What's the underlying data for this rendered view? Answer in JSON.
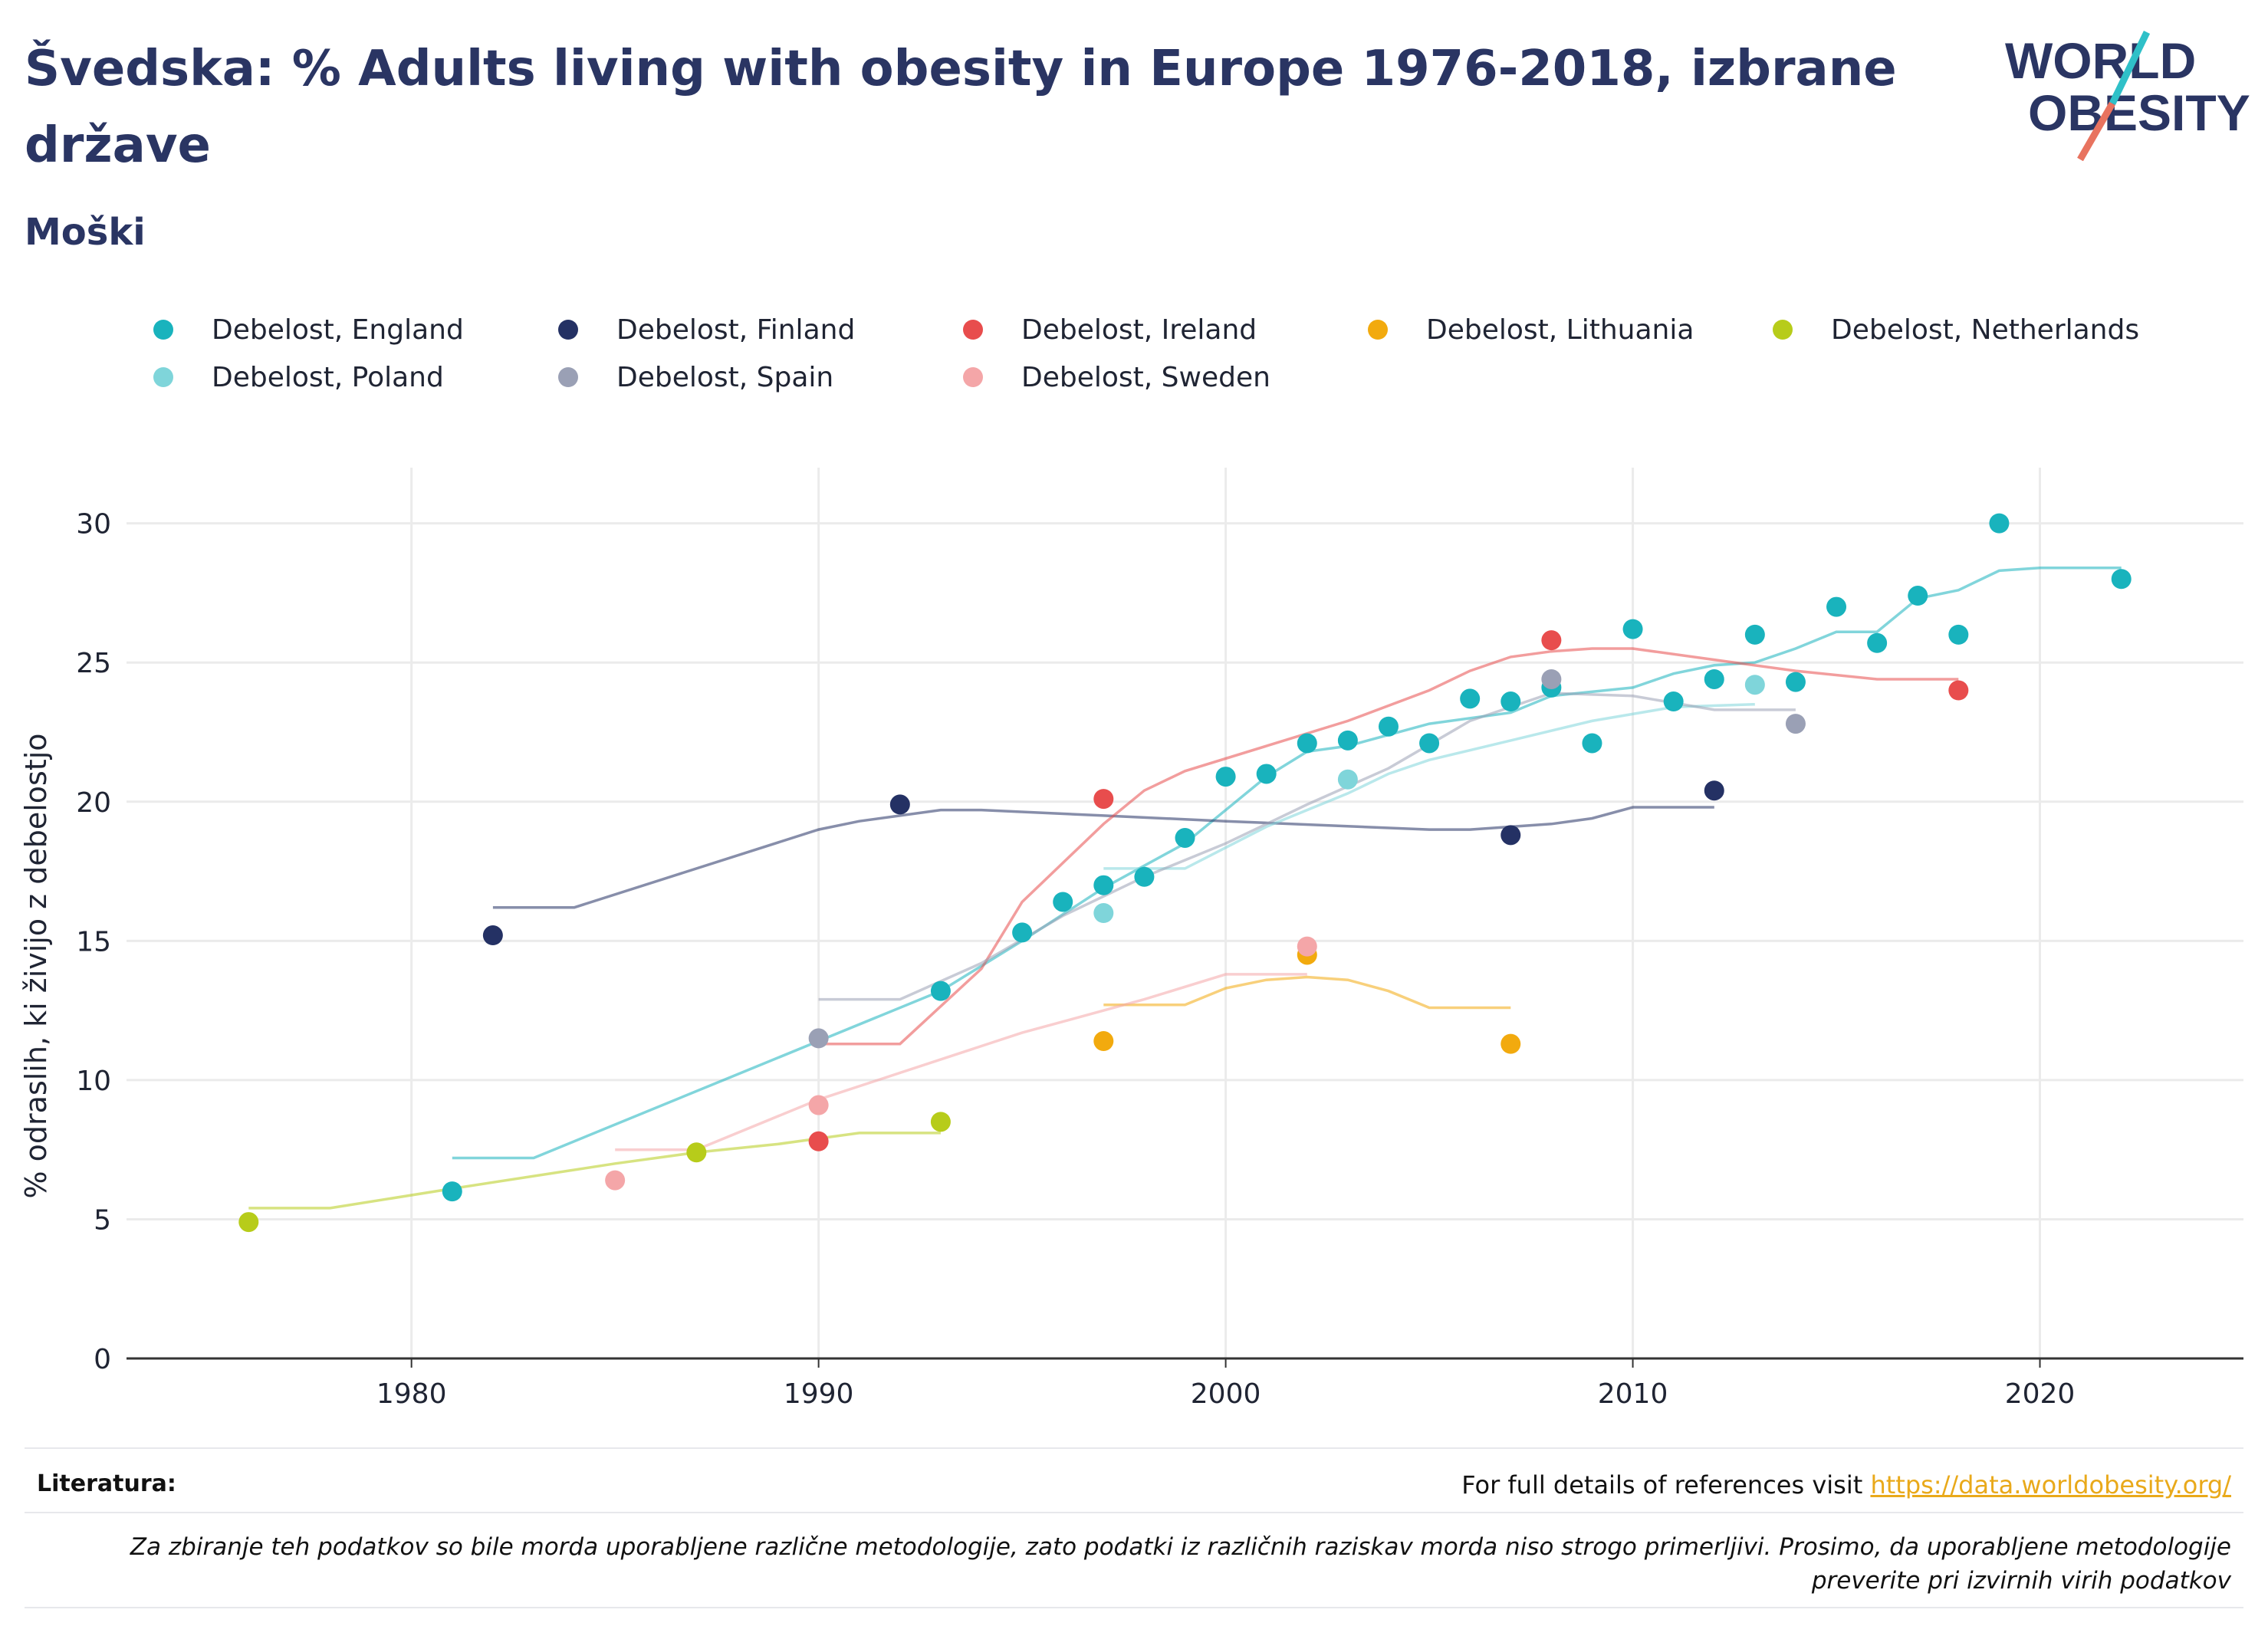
{
  "header": {
    "title": "Švedska: % Adults living with obesity in Europe 1976-2018, izbrane države",
    "subtitle": "Moški",
    "logo_line1": "WORLD",
    "logo_line2": "OBESITY"
  },
  "colors": {
    "title": "#2a3563",
    "axis": "#333333",
    "grid": "#ebebeb",
    "link": "#e9a91a",
    "logo_slash_top": "#2fc0c8",
    "logo_slash_bottom": "#e8735f"
  },
  "footer": {
    "refs_label": "Literatura:",
    "refs_text": "For full details of references visit ",
    "refs_link": "https://data.worldobesity.org/",
    "note": "Za zbiranje teh podatkov so bile morda uporabljene različne metodologije, zato podatki iz različnih raziskav morda niso strogo primerljivi. Prosimo, da uporabljene metodologije preverite pri izvirnih virih podatkov"
  },
  "chart_data": {
    "type": "scatter",
    "ylabel": "% odraslih, ki živijo z debelostjo",
    "xlim": [
      1973,
      2025
    ],
    "ylim": [
      0,
      32
    ],
    "x_ticks": [
      1980,
      1990,
      2000,
      2010,
      2020
    ],
    "y_ticks": [
      0,
      5,
      10,
      15,
      20,
      25,
      30
    ],
    "grid": true,
    "legend_position": "top",
    "series": [
      {
        "name": "Debelost, England",
        "color": "#19b3bd",
        "alpha": 1,
        "points": [
          [
            1981,
            6.0
          ],
          [
            1993,
            13.2
          ],
          [
            1995,
            15.3
          ],
          [
            1996,
            16.4
          ],
          [
            1997,
            17.0
          ],
          [
            1998,
            17.3
          ],
          [
            1999,
            18.7
          ],
          [
            2000,
            20.9
          ],
          [
            2001,
            21.0
          ],
          [
            2002,
            22.1
          ],
          [
            2003,
            22.2
          ],
          [
            2004,
            22.7
          ],
          [
            2005,
            22.1
          ],
          [
            2006,
            23.7
          ],
          [
            2007,
            23.6
          ],
          [
            2008,
            24.1
          ],
          [
            2009,
            22.1
          ],
          [
            2010,
            26.2
          ],
          [
            2011,
            23.6
          ],
          [
            2012,
            24.4
          ],
          [
            2013,
            26.0
          ],
          [
            2014,
            24.3
          ],
          [
            2015,
            27.0
          ],
          [
            2016,
            25.7
          ],
          [
            2017,
            27.4
          ],
          [
            2018,
            26.0
          ],
          [
            2019,
            30.0
          ],
          [
            2022,
            28.0
          ]
        ],
        "trend": [
          [
            1981,
            7.2
          ],
          [
            1983,
            7.2
          ],
          [
            1990,
            11.4
          ],
          [
            1993,
            13.2
          ],
          [
            1995,
            15.0
          ],
          [
            1997,
            16.9
          ],
          [
            1999,
            18.5
          ],
          [
            2001,
            20.9
          ],
          [
            2002,
            21.8
          ],
          [
            2003,
            22.0
          ],
          [
            2005,
            22.8
          ],
          [
            2007,
            23.2
          ],
          [
            2008,
            23.8
          ],
          [
            2010,
            24.1
          ],
          [
            2011,
            24.6
          ],
          [
            2012,
            24.9
          ],
          [
            2013,
            25.0
          ],
          [
            2014,
            25.5
          ],
          [
            2015,
            26.1
          ],
          [
            2016,
            26.1
          ],
          [
            2017,
            27.3
          ],
          [
            2018,
            27.6
          ],
          [
            2019,
            28.3
          ],
          [
            2020,
            28.4
          ],
          [
            2022,
            28.4
          ]
        ]
      },
      {
        "name": "Debelost, Finland",
        "color": "#243164",
        "alpha": 1,
        "points": [
          [
            1982,
            15.2
          ],
          [
            1992,
            19.9
          ],
          [
            2007,
            18.8
          ],
          [
            2012,
            20.4
          ]
        ],
        "trend": [
          [
            1982,
            16.2
          ],
          [
            1984,
            16.2
          ],
          [
            1990,
            19.0
          ],
          [
            1991,
            19.3
          ],
          [
            1993,
            19.7
          ],
          [
            1994,
            19.7
          ],
          [
            1997,
            19.5
          ],
          [
            2000,
            19.3
          ],
          [
            2005,
            19.0
          ],
          [
            2006,
            19.0
          ],
          [
            2008,
            19.2
          ],
          [
            2009,
            19.4
          ],
          [
            2010,
            19.8
          ],
          [
            2012,
            19.8
          ]
        ]
      },
      {
        "name": "Debelost, Ireland",
        "color": "#e84d4d",
        "alpha": 1,
        "points": [
          [
            1990,
            7.8
          ],
          [
            1997,
            20.1
          ],
          [
            2008,
            25.8
          ],
          [
            2018,
            24.0
          ]
        ],
        "trend": [
          [
            1990,
            11.3
          ],
          [
            1992,
            11.3
          ],
          [
            1994,
            14.0
          ],
          [
            1995,
            16.4
          ],
          [
            1997,
            19.2
          ],
          [
            1998,
            20.4
          ],
          [
            1999,
            21.1
          ],
          [
            2001,
            22.0
          ],
          [
            2003,
            22.9
          ],
          [
            2005,
            24.0
          ],
          [
            2006,
            24.7
          ],
          [
            2007,
            25.2
          ],
          [
            2008,
            25.4
          ],
          [
            2009,
            25.5
          ],
          [
            2010,
            25.5
          ],
          [
            2012,
            25.1
          ],
          [
            2014,
            24.7
          ],
          [
            2016,
            24.4
          ],
          [
            2018,
            24.4
          ]
        ]
      },
      {
        "name": "Debelost, Lithuania",
        "color": "#f2aa0e",
        "alpha": 1,
        "points": [
          [
            1997,
            11.4
          ],
          [
            2002,
            14.5
          ],
          [
            2007,
            11.3
          ]
        ],
        "trend": [
          [
            1997,
            12.7
          ],
          [
            1999,
            12.7
          ],
          [
            2000,
            13.3
          ],
          [
            2001,
            13.6
          ],
          [
            2002,
            13.7
          ],
          [
            2003,
            13.6
          ],
          [
            2004,
            13.2
          ],
          [
            2005,
            12.6
          ],
          [
            2007,
            12.6
          ]
        ]
      },
      {
        "name": "Debelost, Netherlands",
        "color": "#b7cc1a",
        "alpha": 1,
        "points": [
          [
            1976,
            4.9
          ],
          [
            1987,
            7.4
          ],
          [
            1993,
            8.5
          ]
        ],
        "trend": [
          [
            1976,
            5.4
          ],
          [
            1978,
            5.4
          ],
          [
            1981,
            6.1
          ],
          [
            1985,
            7.0
          ],
          [
            1987,
            7.4
          ],
          [
            1989,
            7.7
          ],
          [
            1990,
            7.9
          ],
          [
            1991,
            8.1
          ],
          [
            1993,
            8.1
          ]
        ]
      },
      {
        "name": "Debelost, Poland",
        "color": "#7fd5da",
        "alpha": 1,
        "points": [
          [
            1997,
            16.0
          ],
          [
            2003,
            20.8
          ],
          [
            2013,
            24.2
          ]
        ],
        "trend": [
          [
            1997,
            17.6
          ],
          [
            1999,
            17.6
          ],
          [
            2001,
            19.1
          ],
          [
            2003,
            20.3
          ],
          [
            2004,
            21.0
          ],
          [
            2005,
            21.5
          ],
          [
            2007,
            22.2
          ],
          [
            2009,
            22.9
          ],
          [
            2011,
            23.4
          ],
          [
            2013,
            23.5
          ]
        ]
      },
      {
        "name": "Debelost, Spain",
        "color": "#9aa0b5",
        "alpha": 1,
        "points": [
          [
            1990,
            11.5
          ],
          [
            2008,
            24.4
          ],
          [
            2014,
            22.8
          ]
        ],
        "trend": [
          [
            1990,
            12.9
          ],
          [
            1992,
            12.9
          ],
          [
            1994,
            14.2
          ],
          [
            1996,
            15.9
          ],
          [
            1998,
            17.3
          ],
          [
            2000,
            18.5
          ],
          [
            2002,
            19.9
          ],
          [
            2004,
            21.2
          ],
          [
            2006,
            22.9
          ],
          [
            2008,
            23.9
          ],
          [
            2010,
            23.8
          ],
          [
            2012,
            23.3
          ],
          [
            2014,
            23.3
          ]
        ]
      },
      {
        "name": "Debelost, Sweden",
        "color": "#f4a6a8",
        "alpha": 1,
        "points": [
          [
            1985,
            6.4
          ],
          [
            1990,
            9.1
          ],
          [
            2002,
            14.8
          ]
        ],
        "trend": [
          [
            1985,
            7.5
          ],
          [
            1987,
            7.5
          ],
          [
            1990,
            9.3
          ],
          [
            1995,
            11.7
          ],
          [
            1998,
            12.9
          ],
          [
            2000,
            13.8
          ],
          [
            2002,
            13.8
          ]
        ]
      }
    ]
  }
}
